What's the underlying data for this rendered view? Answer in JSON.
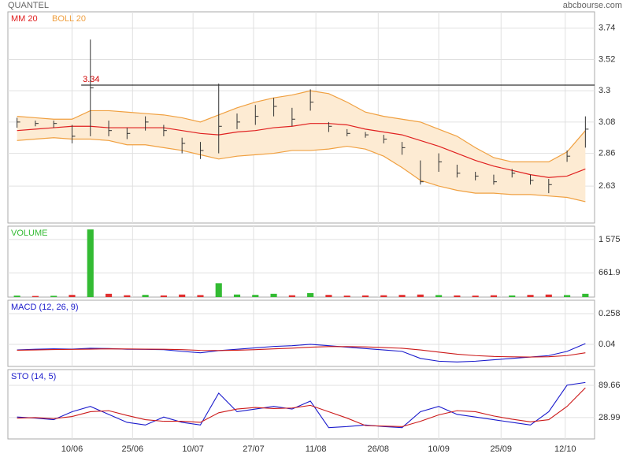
{
  "header": {
    "title": "QUANTEL",
    "source": "abcbourse.com"
  },
  "chart_data": [
    {
      "type": "price",
      "xlim": [
        -0.5,
        31.5
      ],
      "ylim": [
        2.37,
        3.855
      ],
      "yticks": [
        2.63,
        2.86,
        3.08,
        3.3,
        3.52,
        3.74
      ],
      "reference_line": 3.34,
      "high": [
        3.11,
        3.09,
        3.09,
        3.06,
        3.66,
        3.09,
        3.04,
        3.12,
        3.06,
        2.97,
        2.94,
        3.35,
        3.14,
        3.2,
        3.25,
        3.18,
        3.31,
        3.08,
        3.03,
        3.01,
        2.99,
        2.94,
        2.81,
        2.86,
        2.78,
        2.73,
        2.71,
        2.75,
        2.71,
        2.68,
        2.88,
        3.12
      ],
      "low": [
        3.04,
        3.05,
        3.04,
        2.93,
        2.98,
        2.98,
        2.96,
        3.02,
        2.98,
        2.86,
        2.82,
        2.86,
        3.03,
        3.06,
        3.12,
        3.05,
        3.16,
        3.01,
        2.98,
        2.97,
        2.93,
        2.85,
        2.64,
        2.73,
        2.69,
        2.67,
        2.64,
        2.69,
        2.64,
        2.58,
        2.8,
        2.9
      ],
      "close": [
        3.08,
        3.07,
        3.07,
        2.98,
        3.32,
        3.02,
        3.0,
        3.08,
        3.02,
        2.93,
        2.88,
        3.05,
        3.08,
        3.12,
        3.19,
        3.1,
        3.22,
        3.05,
        3.0,
        2.99,
        2.96,
        2.9,
        2.66,
        2.8,
        2.72,
        2.7,
        2.66,
        2.72,
        2.67,
        2.64,
        2.84,
        3.03
      ],
      "series": [
        {
          "name": "MM 20",
          "color": "#e02020",
          "values": [
            3.02,
            3.03,
            3.04,
            3.05,
            3.05,
            3.04,
            3.04,
            3.04,
            3.04,
            3.02,
            3.0,
            2.99,
            3.01,
            3.02,
            3.04,
            3.05,
            3.07,
            3.07,
            3.06,
            3.03,
            3.01,
            2.99,
            2.95,
            2.91,
            2.86,
            2.81,
            2.77,
            2.74,
            2.71,
            2.69,
            2.7,
            2.75
          ]
        },
        {
          "name": "BOLL 20",
          "color": "#f0a040",
          "upper": [
            3.12,
            3.11,
            3.1,
            3.1,
            3.16,
            3.16,
            3.15,
            3.14,
            3.13,
            3.11,
            3.08,
            3.13,
            3.18,
            3.22,
            3.25,
            3.27,
            3.3,
            3.28,
            3.22,
            3.15,
            3.12,
            3.1,
            3.08,
            3.03,
            2.98,
            2.9,
            2.83,
            2.8,
            2.8,
            2.8,
            2.87,
            3.02
          ],
          "lower": [
            2.95,
            2.96,
            2.97,
            2.96,
            2.96,
            2.95,
            2.92,
            2.92,
            2.9,
            2.88,
            2.85,
            2.82,
            2.84,
            2.85,
            2.86,
            2.88,
            2.88,
            2.89,
            2.91,
            2.89,
            2.84,
            2.76,
            2.67,
            2.63,
            2.6,
            2.58,
            2.58,
            2.57,
            2.57,
            2.56,
            2.55,
            2.52
          ]
        }
      ]
    },
    {
      "type": "volume",
      "xlim": [
        -0.5,
        31.5
      ],
      "ylim": [
        0,
        1940
      ],
      "yticks": [
        {
          "value": 661.9,
          "label": "661.9"
        },
        {
          "value": 1575,
          "label": "1 575"
        }
      ],
      "series": [
        {
          "name": "VOLUME",
          "color": "#33bb33",
          "down_color": "#e03030",
          "values": [
            40,
            30,
            35,
            60,
            1850,
            90,
            50,
            60,
            45,
            70,
            55,
            380,
            70,
            60,
            90,
            50,
            110,
            60,
            40,
            45,
            50,
            60,
            70,
            55,
            45,
            40,
            50,
            45,
            60,
            70,
            55,
            90
          ]
        }
      ]
    },
    {
      "type": "line",
      "title": "MACD (12, 26, 9)",
      "xlim": [
        -0.5,
        31.5
      ],
      "ylim": [
        -0.117,
        0.353
      ],
      "yticks": [
        0.04,
        0.258
      ],
      "series": [
        {
          "color": "#1a1acc",
          "values": [
            0.0,
            0.005,
            0.008,
            0.006,
            0.012,
            0.01,
            0.005,
            0.004,
            0.002,
            -0.01,
            -0.02,
            -0.005,
            0.005,
            0.015,
            0.025,
            0.03,
            0.04,
            0.03,
            0.02,
            0.01,
            0.0,
            -0.01,
            -0.06,
            -0.08,
            -0.085,
            -0.08,
            -0.07,
            -0.06,
            -0.05,
            -0.04,
            -0.01,
            0.045
          ]
        },
        {
          "color": "#cc1a1a",
          "values": [
            -0.002,
            0.0,
            0.003,
            0.004,
            0.006,
            0.008,
            0.007,
            0.006,
            0.005,
            0.002,
            -0.003,
            -0.004,
            -0.002,
            0.002,
            0.008,
            0.013,
            0.02,
            0.024,
            0.024,
            0.022,
            0.017,
            0.012,
            0.0,
            -0.015,
            -0.03,
            -0.04,
            -0.046,
            -0.049,
            -0.05,
            -0.048,
            -0.04,
            -0.02
          ]
        }
      ]
    },
    {
      "type": "line",
      "title": "STO (14, 5)",
      "xlim": [
        -0.5,
        31.5
      ],
      "ylim": [
        -11.2,
        119.3
      ],
      "yticks": [
        28.99,
        89.66
      ],
      "xticks": [
        {
          "value": 3,
          "label": "10/06"
        },
        {
          "value": 6.3,
          "label": "25/06"
        },
        {
          "value": 9.6,
          "label": "10/07"
        },
        {
          "value": 12.9,
          "label": "27/07"
        },
        {
          "value": 16.3,
          "label": "11/08"
        },
        {
          "value": 19.7,
          "label": "26/08"
        },
        {
          "value": 23,
          "label": "10/09"
        },
        {
          "value": 26.4,
          "label": "25/09"
        },
        {
          "value": 29.9,
          "label": "12/10"
        }
      ],
      "series": [
        {
          "color": "#1a1acc",
          "values": [
            30,
            28,
            25,
            40,
            50,
            35,
            20,
            15,
            30,
            20,
            15,
            75,
            40,
            45,
            50,
            45,
            60,
            10,
            12,
            15,
            12,
            10,
            40,
            50,
            35,
            30,
            25,
            20,
            15,
            40,
            90,
            95
          ]
        },
        {
          "color": "#cc1a1a",
          "values": [
            28,
            29,
            27,
            31,
            40,
            42,
            33,
            25,
            22,
            22,
            20,
            38,
            45,
            48,
            46,
            47,
            52,
            40,
            28,
            14,
            13,
            12,
            22,
            34,
            42,
            40,
            32,
            26,
            21,
            25,
            50,
            85
          ]
        }
      ]
    }
  ]
}
